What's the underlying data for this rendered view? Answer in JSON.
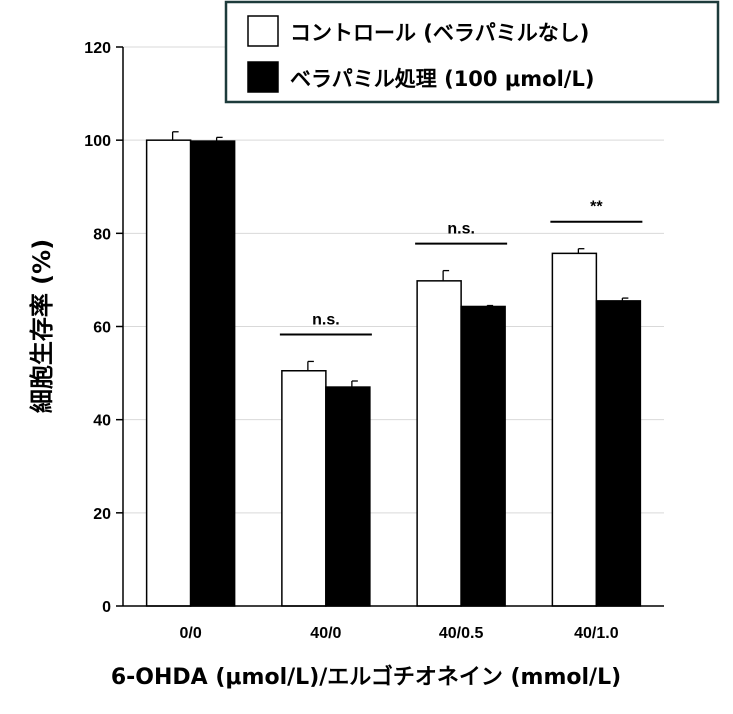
{
  "chart_data": {
    "type": "bar",
    "categories": [
      "0/0",
      "40/0",
      "40/0.5",
      "40/1.0"
    ],
    "series": [
      {
        "name": "コントロール (ベラパミルなし)",
        "values": [
          100,
          50.5,
          69.8,
          75.7
        ],
        "errors": [
          1.8,
          2.0,
          2.2,
          1.0
        ],
        "color": "#ffffff"
      },
      {
        "name": "ベラパミル処理 (100 μmol/L)",
        "values": [
          99.8,
          47.0,
          64.3,
          65.5
        ],
        "errors": [
          0.8,
          1.3,
          0.2,
          0.6
        ],
        "color": "#000000"
      }
    ],
    "significance": [
      "",
      "n.s.",
      "n.s.",
      "**"
    ],
    "ylabel": "細胞生存率 (%)",
    "xlabel": "6-OHDA (μmol/L)/エルゴチオネイン (mmol/L)",
    "ylim": [
      0,
      120
    ],
    "yticks": [
      0,
      20,
      40,
      60,
      80,
      100,
      120
    ],
    "grid": "horizontal",
    "legend_position": "top-right"
  }
}
